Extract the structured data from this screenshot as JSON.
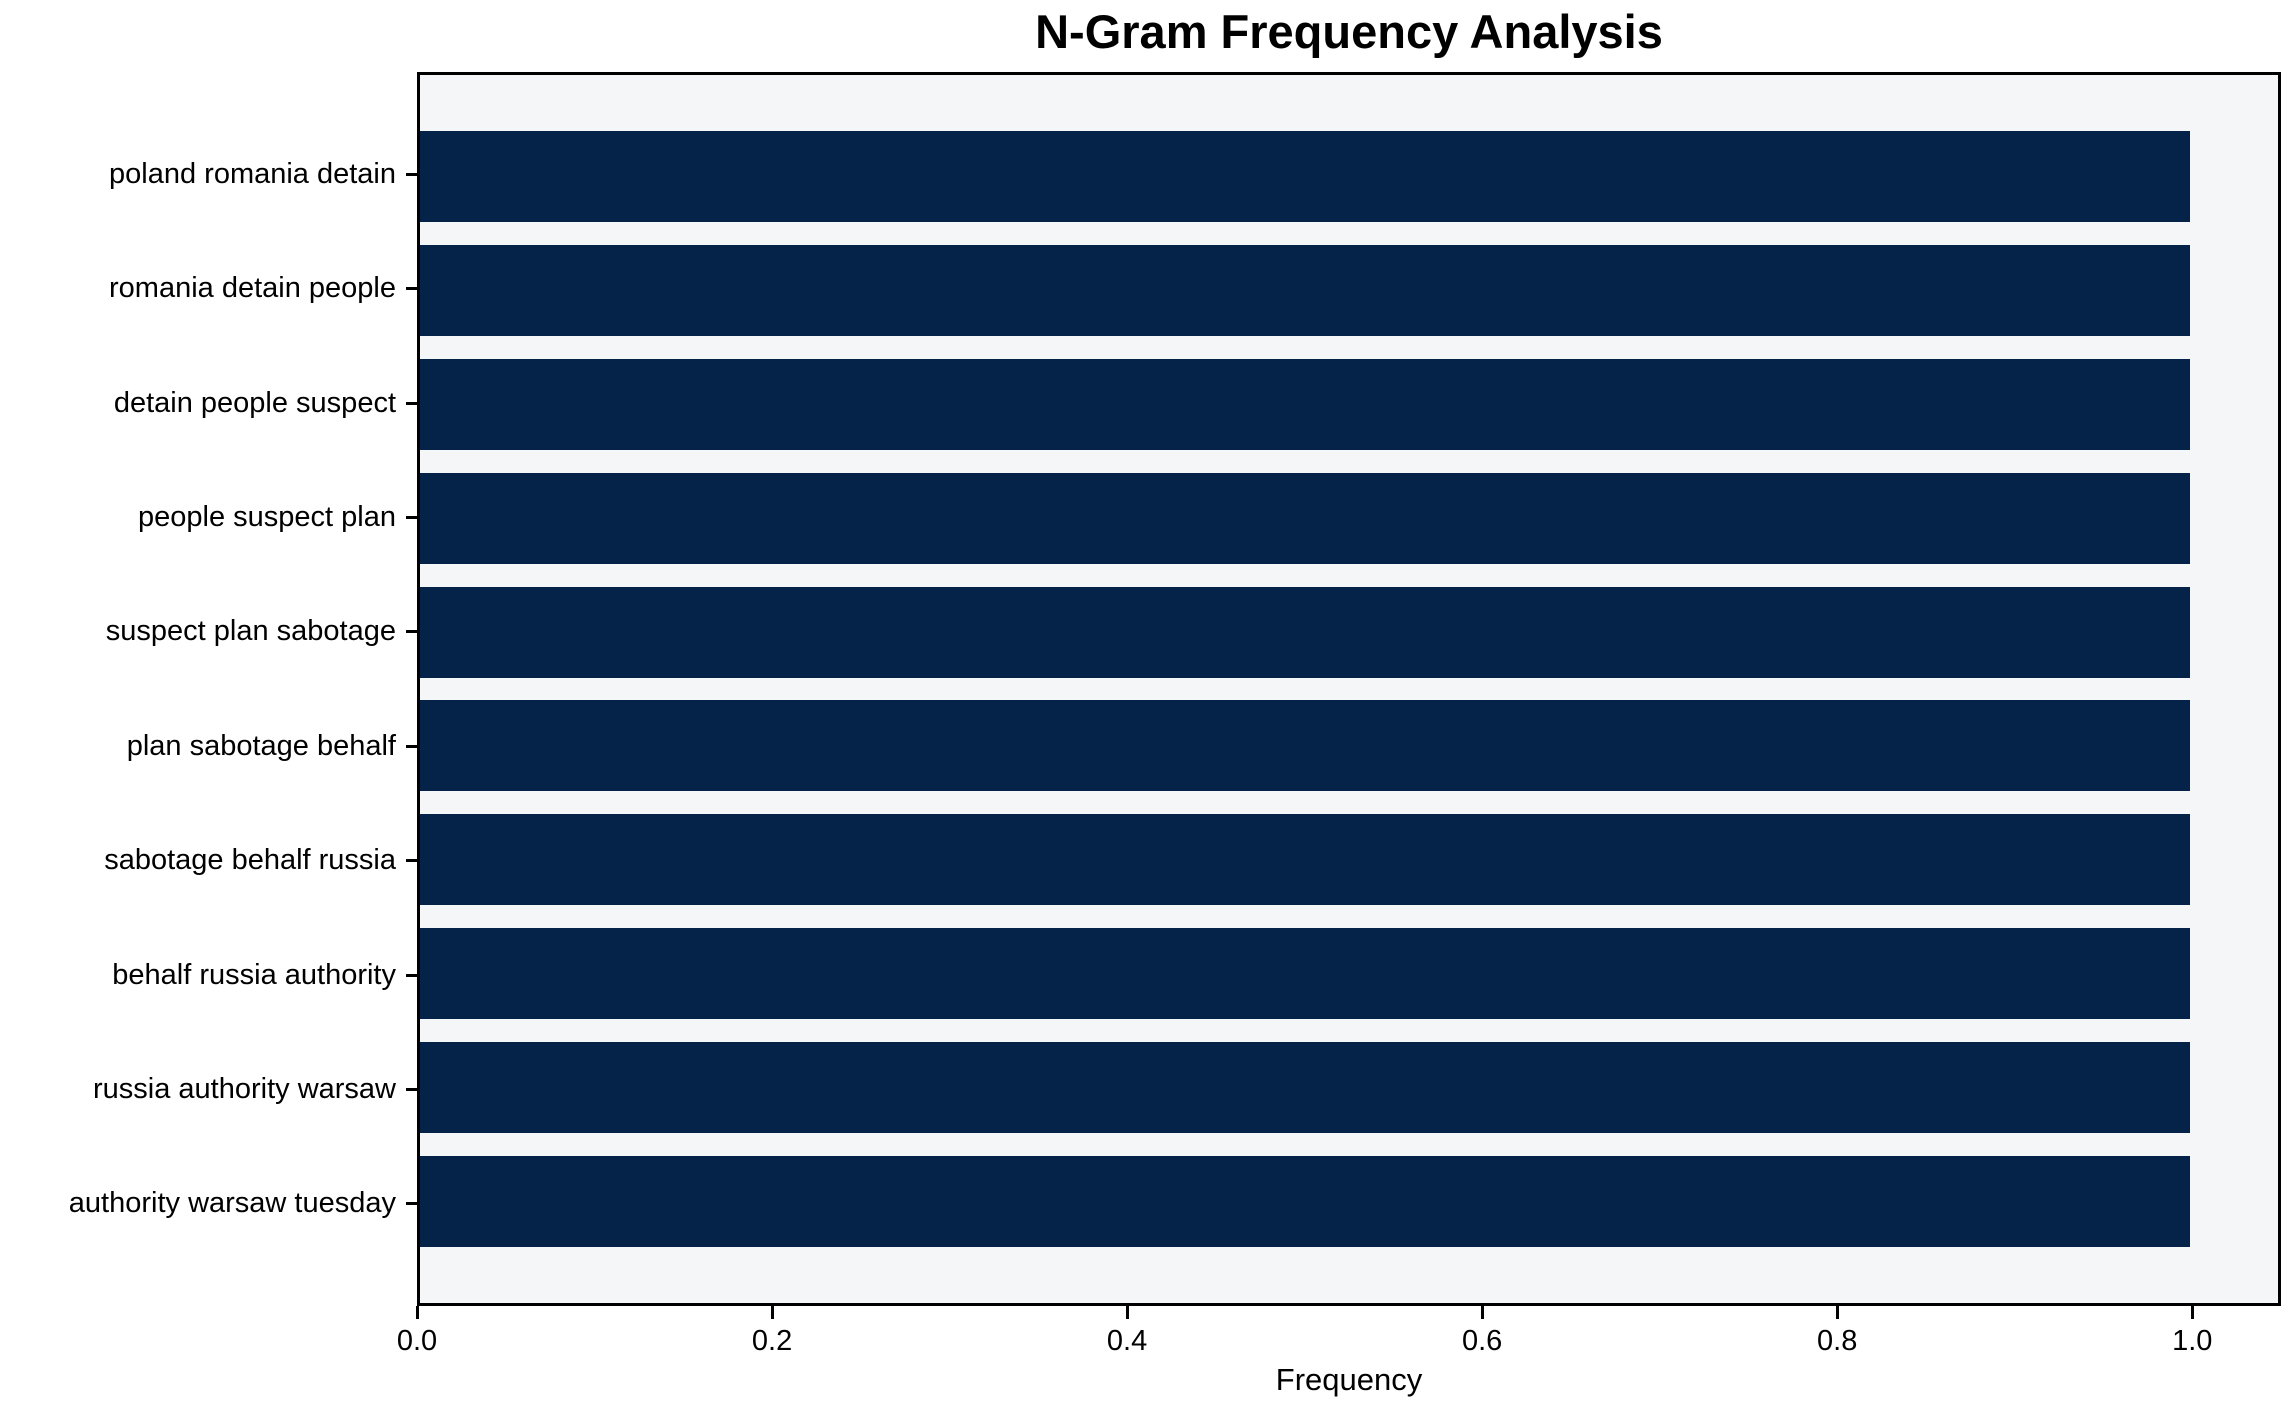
{
  "chart_data": {
    "type": "bar",
    "orientation": "horizontal",
    "title": "N-Gram Frequency Analysis",
    "xlabel": "Frequency",
    "ylabel": "",
    "categories": [
      "poland romania detain",
      "romania detain people",
      "detain people suspect",
      "people suspect plan",
      "suspect plan sabotage",
      "plan sabotage behalf",
      "sabotage behalf russia",
      "behalf russia authority",
      "russia authority warsaw",
      "authority warsaw tuesday"
    ],
    "values": [
      1.0,
      1.0,
      1.0,
      1.0,
      1.0,
      1.0,
      1.0,
      1.0,
      1.0,
      1.0
    ],
    "xlim": [
      0.0,
      1.05
    ],
    "xticks": [
      0.0,
      0.2,
      0.4,
      0.6,
      0.8,
      1.0
    ],
    "xtick_labels": [
      "0.0",
      "0.2",
      "0.4",
      "0.6",
      "0.8",
      "1.0"
    ],
    "bar_color": "#052348",
    "plot_bg": "#f5f6f7",
    "figure_bg": "#ffffff",
    "grid": false,
    "legend": null
  }
}
